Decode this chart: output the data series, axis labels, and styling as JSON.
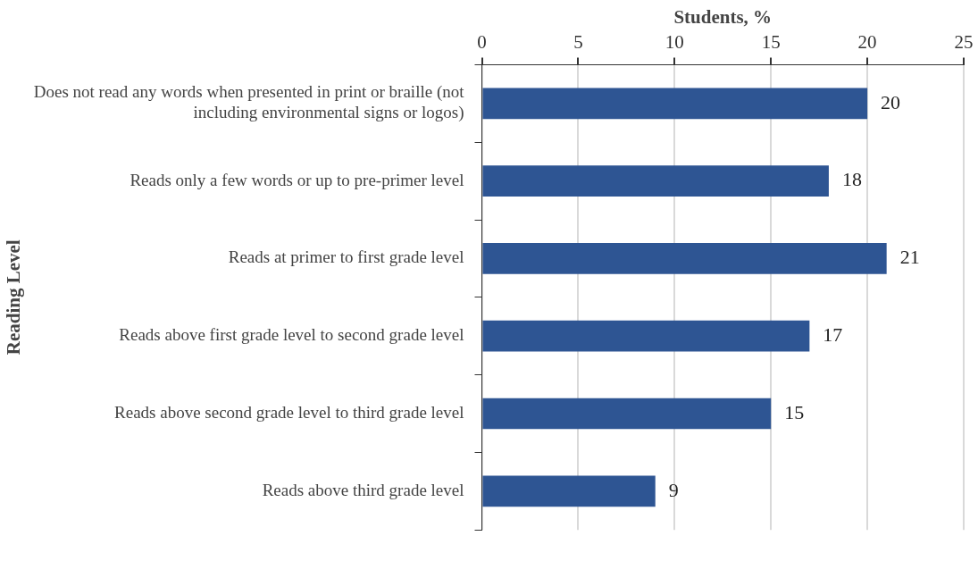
{
  "chart_data": {
    "type": "bar",
    "orientation": "horizontal",
    "xlabel": "Students, %",
    "ylabel": "Reading Level",
    "categories": [
      "Does not read any words when presented in print or braille (not including environmental signs or logos)",
      "Reads only a few words or up to pre-primer level",
      "Reads at primer to first grade level",
      "Reads above first grade level to second grade level",
      "Reads above second grade level to third grade level",
      "Reads above third grade level"
    ],
    "values": [
      20,
      18,
      21,
      17,
      15,
      9
    ],
    "color": "#2e5593",
    "xlim": [
      0,
      25
    ],
    "xticks": [
      0,
      5,
      10,
      15,
      20,
      25
    ],
    "grid": "x",
    "data_labels": true,
    "legend": false
  }
}
